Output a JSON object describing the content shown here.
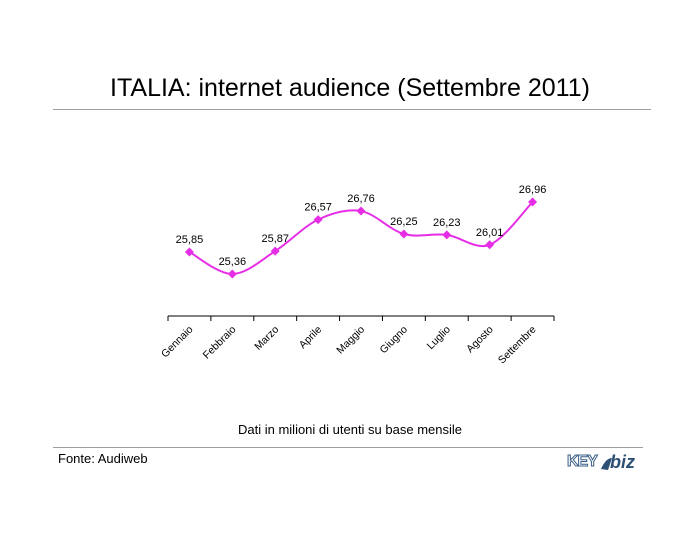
{
  "title": "ITALIA: internet audience (Settembre 2011)",
  "caption": "Dati in milioni di utenti su base mensile",
  "source": "Fonte: Audiweb",
  "logo": {
    "key_text": "KEY",
    "biz_text": "biz"
  },
  "colors": {
    "line": "#e62ee6",
    "marker": "#e62ee6",
    "axis": "#000000",
    "rule": "#a0a0a0"
  },
  "chart_data": {
    "type": "line",
    "categories": [
      "Gennaio",
      "Febbraio",
      "Marzo",
      "Aprile",
      "Maggio",
      "Giugno",
      "Luglio",
      "Agosto",
      "Settembre"
    ],
    "values": [
      25.85,
      25.36,
      25.87,
      26.57,
      26.76,
      26.25,
      26.23,
      26.01,
      26.96
    ],
    "data_labels": [
      "25,85",
      "25,36",
      "25,87",
      "26,57",
      "26,76",
      "26,25",
      "26,23",
      "26,01",
      "26,96"
    ],
    "xlabel": "",
    "ylabel": "",
    "smooth": true,
    "markers": "diamond",
    "grid": false,
    "legend": "none"
  }
}
